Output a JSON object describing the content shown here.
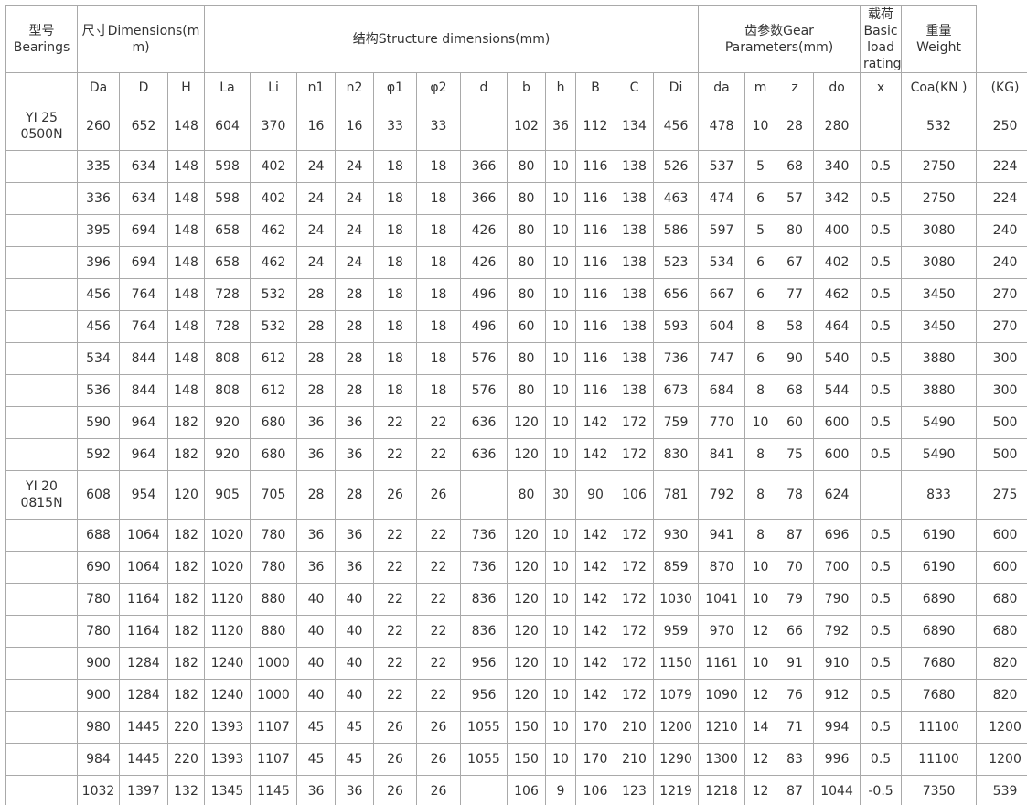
{
  "table": {
    "header": {
      "bearing": "型号 Bearings",
      "dimensions": "尺寸Dimensions(mm)",
      "structure": "结构Structure dimensions(mm)",
      "gear": "齿参数Gear Parameters(mm)",
      "load": "载荷Basic load rating",
      "weight": "重量 Weight"
    },
    "columns": [
      "Da",
      "D",
      "H",
      "La",
      "Li",
      "n1",
      "n2",
      "φ1",
      "φ2",
      "d",
      "b",
      "h",
      "B",
      "C",
      "Di",
      "da",
      "m",
      "z",
      "do",
      "x",
      "Coa(KN )",
      "(KG)"
    ],
    "rows": [
      [
        "YI 25 0500N",
        260,
        652,
        148,
        604,
        370,
        16,
        16,
        33,
        33,
        null,
        102,
        36,
        112,
        134,
        456,
        478,
        10,
        28,
        280,
        null,
        532,
        250
      ],
      [
        null,
        335,
        634,
        148,
        598,
        402,
        24,
        24,
        18,
        18,
        366,
        80,
        10,
        116,
        138,
        526,
        537,
        5,
        68,
        340,
        0.5,
        2750,
        224
      ],
      [
        null,
        336,
        634,
        148,
        598,
        402,
        24,
        24,
        18,
        18,
        366,
        80,
        10,
        116,
        138,
        463,
        474,
        6,
        57,
        342,
        0.5,
        2750,
        224
      ],
      [
        null,
        395,
        694,
        148,
        658,
        462,
        24,
        24,
        18,
        18,
        426,
        80,
        10,
        116,
        138,
        586,
        597,
        5,
        80,
        400,
        0.5,
        3080,
        240
      ],
      [
        null,
        396,
        694,
        148,
        658,
        462,
        24,
        24,
        18,
        18,
        426,
        80,
        10,
        116,
        138,
        523,
        534,
        6,
        67,
        402,
        0.5,
        3080,
        240
      ],
      [
        null,
        456,
        764,
        148,
        728,
        532,
        28,
        28,
        18,
        18,
        496,
        80,
        10,
        116,
        138,
        656,
        667,
        6,
        77,
        462,
        0.5,
        3450,
        270
      ],
      [
        null,
        456,
        764,
        148,
        728,
        532,
        28,
        28,
        18,
        18,
        496,
        60,
        10,
        116,
        138,
        593,
        604,
        8,
        58,
        464,
        0.5,
        3450,
        270
      ],
      [
        null,
        534,
        844,
        148,
        808,
        612,
        28,
        28,
        18,
        18,
        576,
        80,
        10,
        116,
        138,
        736,
        747,
        6,
        90,
        540,
        0.5,
        3880,
        300
      ],
      [
        null,
        536,
        844,
        148,
        808,
        612,
        28,
        28,
        18,
        18,
        576,
        80,
        10,
        116,
        138,
        673,
        684,
        8,
        68,
        544,
        0.5,
        3880,
        300
      ],
      [
        null,
        590,
        964,
        182,
        920,
        680,
        36,
        36,
        22,
        22,
        636,
        120,
        10,
        142,
        172,
        759,
        770,
        10,
        60,
        600,
        0.5,
        5490,
        500
      ],
      [
        null,
        592,
        964,
        182,
        920,
        680,
        36,
        36,
        22,
        22,
        636,
        120,
        10,
        142,
        172,
        830,
        841,
        8,
        75,
        600,
        0.5,
        5490,
        500
      ],
      [
        "YI 20 0815N",
        608,
        954,
        120,
        905,
        705,
        28,
        28,
        26,
        26,
        null,
        80,
        30,
        90,
        106,
        781,
        792,
        8,
        78,
        624,
        null,
        833,
        275
      ],
      [
        null,
        688,
        1064,
        182,
        1020,
        780,
        36,
        36,
        22,
        22,
        736,
        120,
        10,
        142,
        172,
        930,
        941,
        8,
        87,
        696,
        0.5,
        6190,
        600
      ],
      [
        null,
        690,
        1064,
        182,
        1020,
        780,
        36,
        36,
        22,
        22,
        736,
        120,
        10,
        142,
        172,
        859,
        870,
        10,
        70,
        700,
        0.5,
        6190,
        600
      ],
      [
        null,
        780,
        1164,
        182,
        1120,
        880,
        40,
        40,
        22,
        22,
        836,
        120,
        10,
        142,
        172,
        1030,
        1041,
        10,
        79,
        790,
        0.5,
        6890,
        680
      ],
      [
        null,
        780,
        1164,
        182,
        1120,
        880,
        40,
        40,
        22,
        22,
        836,
        120,
        10,
        142,
        172,
        959,
        970,
        12,
        66,
        792,
        0.5,
        6890,
        680
      ],
      [
        null,
        900,
        1284,
        182,
        1240,
        1000,
        40,
        40,
        22,
        22,
        956,
        120,
        10,
        142,
        172,
        1150,
        1161,
        10,
        91,
        910,
        0.5,
        7680,
        820
      ],
      [
        null,
        900,
        1284,
        182,
        1240,
        1000,
        40,
        40,
        22,
        22,
        956,
        120,
        10,
        142,
        172,
        1079,
        1090,
        12,
        76,
        912,
        0.5,
        7680,
        820
      ],
      [
        null,
        980,
        1445,
        220,
        1393,
        1107,
        45,
        45,
        26,
        26,
        1055,
        150,
        10,
        170,
        210,
        1200,
        1210,
        14,
        71,
        994,
        0.5,
        11100,
        1200
      ],
      [
        null,
        984,
        1445,
        220,
        1393,
        1107,
        45,
        45,
        26,
        26,
        1055,
        150,
        10,
        170,
        210,
        1290,
        1300,
        12,
        83,
        996,
        0.5,
        11100,
        1200
      ],
      [
        null,
        1032,
        1397,
        132,
        1345,
        1145,
        36,
        36,
        26,
        26,
        null,
        106,
        9,
        106,
        123,
        1219,
        1218,
        12,
        87,
        1044,
        -0.5,
        7350,
        539
      ]
    ]
  }
}
